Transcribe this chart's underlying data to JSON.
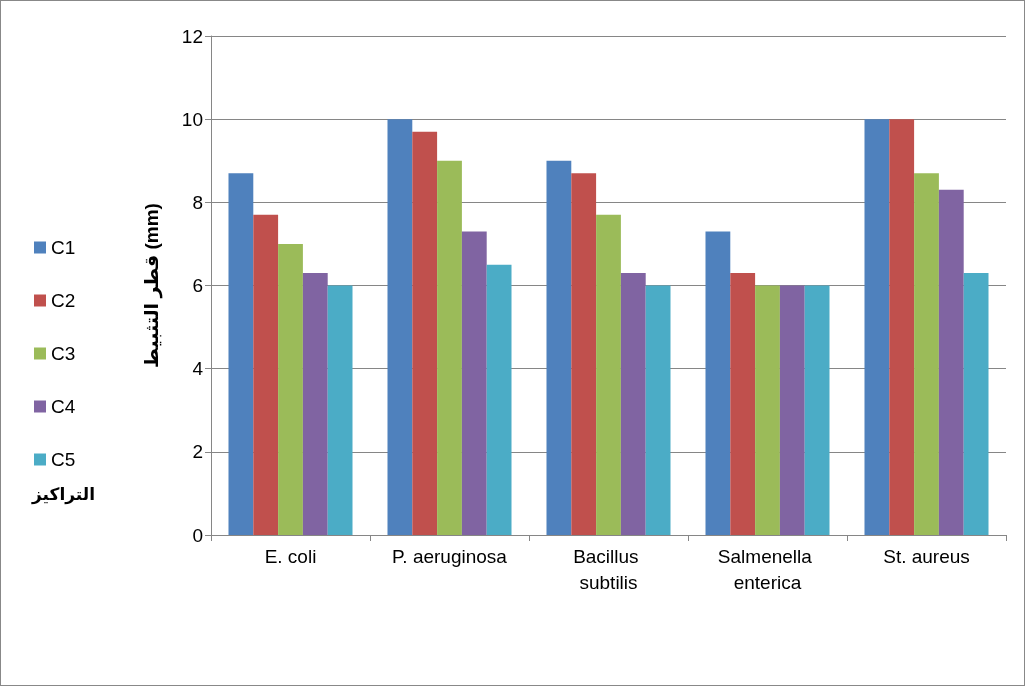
{
  "chart_data": {
    "type": "bar",
    "ylabel": "قطر التثبيط (mm)",
    "legend_title": "التراكيز",
    "categories": [
      "E. coli",
      "P. aeruginosa",
      "Bacillus subtilis",
      "Salmenella enterica",
      "St. aureus"
    ],
    "series": [
      {
        "name": "C1",
        "color": "#4f81bd",
        "values": [
          8.7,
          10,
          9,
          7.3,
          10
        ]
      },
      {
        "name": "C2",
        "color": "#c0504d",
        "values": [
          7.7,
          9.7,
          8.7,
          6.3,
          10
        ]
      },
      {
        "name": "C3",
        "color": "#9bbb59",
        "values": [
          7,
          9,
          7.7,
          6,
          8.7
        ]
      },
      {
        "name": "C4",
        "color": "#8064a2",
        "values": [
          6.3,
          7.3,
          6.3,
          6,
          8.3
        ]
      },
      {
        "name": "C5",
        "color": "#4bacc6",
        "values": [
          6,
          6.5,
          6,
          6,
          6.3
        ]
      }
    ],
    "ylim": [
      0,
      12
    ],
    "yticks": [
      0,
      2,
      4,
      6,
      8,
      10,
      12
    ],
    "grid": "y",
    "legend": "left"
  }
}
